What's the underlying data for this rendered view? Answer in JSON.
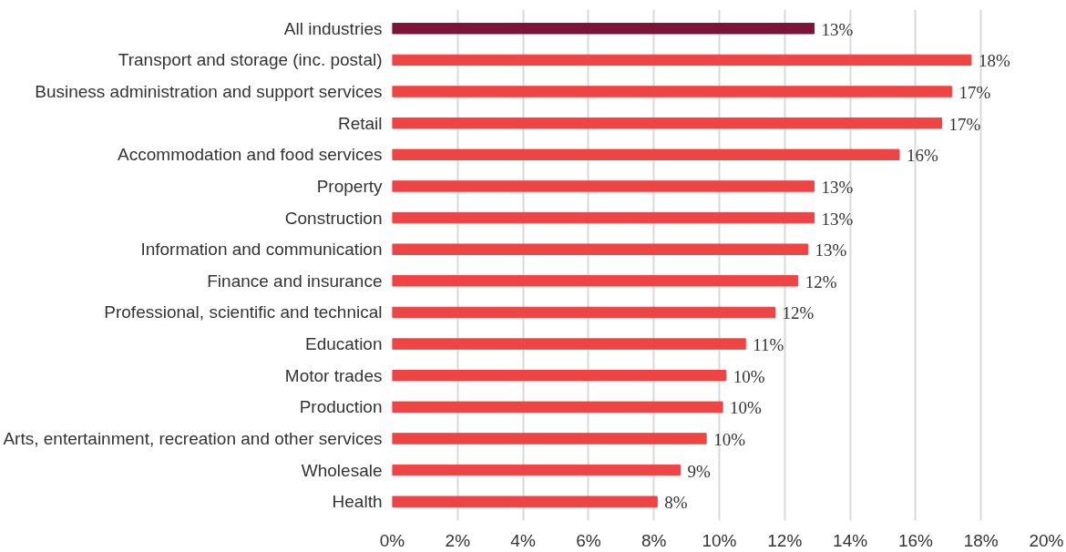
{
  "chart_data": {
    "type": "bar",
    "orientation": "horizontal",
    "categories": [
      "All industries",
      "Transport and storage (inc. postal)",
      "Business administration and support services",
      "Retail",
      "Accommodation and food services",
      "Property",
      "Construction",
      "Information and communication",
      "Finance and insurance",
      "Professional, scientific and technical",
      "Education",
      "Motor trades",
      "Production",
      "Arts, entertainment, recreation and other services",
      "Wholesale",
      "Health"
    ],
    "values": [
      12.9,
      17.7,
      17.1,
      16.8,
      15.5,
      12.9,
      12.9,
      12.7,
      12.4,
      11.7,
      10.8,
      10.2,
      10.1,
      9.6,
      8.8,
      8.1
    ],
    "value_labels": [
      "13%",
      "18%",
      "17%",
      "17%",
      "16%",
      "13%",
      "13%",
      "13%",
      "12%",
      "12%",
      "11%",
      "10%",
      "10%",
      "10%",
      "9%",
      "8%"
    ],
    "colors": [
      "#7b1538",
      "#ef4444",
      "#ef4444",
      "#ef4444",
      "#ef4444",
      "#ef4444",
      "#ef4444",
      "#ef4444",
      "#ef4444",
      "#ef4444",
      "#ef4444",
      "#ef4444",
      "#ef4444",
      "#ef4444",
      "#ef4444",
      "#ef4444"
    ],
    "xlim": [
      0,
      20
    ],
    "xticks": [
      {
        "value": 0,
        "label": "0%"
      },
      {
        "value": 2,
        "label": "2%"
      },
      {
        "value": 4,
        "label": "4%"
      },
      {
        "value": 6,
        "label": "6%"
      },
      {
        "value": 8,
        "label": "8%"
      },
      {
        "value": 10,
        "label": "10%"
      },
      {
        "value": 12,
        "label": "12%"
      },
      {
        "value": 14,
        "label": "14%"
      },
      {
        "value": 16,
        "label": "16%"
      },
      {
        "value": 18,
        "label": "18%"
      },
      {
        "value": 20,
        "label": "20%"
      }
    ],
    "grid": "x"
  }
}
